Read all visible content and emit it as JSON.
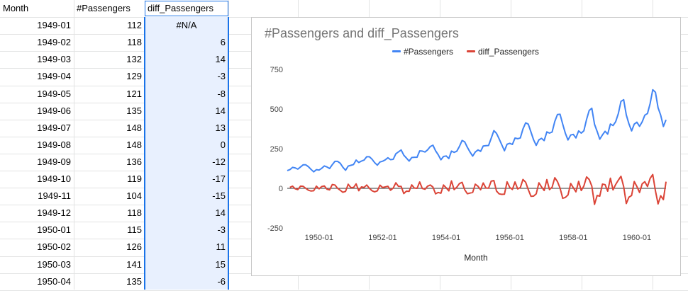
{
  "headers": {
    "month": "Month",
    "passengers": "#Passengers",
    "diff": "diff_Passengers"
  },
  "rows": [
    {
      "month": "1949-01",
      "passengers": "112",
      "diff": "#N/A"
    },
    {
      "month": "1949-02",
      "passengers": "118",
      "diff": "6"
    },
    {
      "month": "1949-03",
      "passengers": "132",
      "diff": "14"
    },
    {
      "month": "1949-04",
      "passengers": "129",
      "diff": "-3"
    },
    {
      "month": "1949-05",
      "passengers": "121",
      "diff": "-8"
    },
    {
      "month": "1949-06",
      "passengers": "135",
      "diff": "14"
    },
    {
      "month": "1949-07",
      "passengers": "148",
      "diff": "13"
    },
    {
      "month": "1949-08",
      "passengers": "148",
      "diff": "0"
    },
    {
      "month": "1949-09",
      "passengers": "136",
      "diff": "-12"
    },
    {
      "month": "1949-10",
      "passengers": "119",
      "diff": "-17"
    },
    {
      "month": "1949-11",
      "passengers": "104",
      "diff": "-15"
    },
    {
      "month": "1949-12",
      "passengers": "118",
      "diff": "14"
    },
    {
      "month": "1950-01",
      "passengers": "115",
      "diff": "-3"
    },
    {
      "month": "1950-02",
      "passengers": "126",
      "diff": "11"
    },
    {
      "month": "1950-03",
      "passengers": "141",
      "diff": "15"
    },
    {
      "month": "1950-04",
      "passengers": "135",
      "diff": "-6"
    }
  ],
  "chart_data": {
    "type": "line",
    "title": "#Passengers and diff_Passengers",
    "xlabel": "Month",
    "ylabel": "",
    "ylim": [
      -250,
      750
    ],
    "yticks": [
      750,
      500,
      250,
      0,
      -250
    ],
    "xtick_labels": [
      "1950-01",
      "1952-01",
      "1954-01",
      "1956-01",
      "1958-01",
      "1960-01"
    ],
    "legend_position": "top",
    "grid": false,
    "x_start": "1949-01",
    "series": [
      {
        "name": "#Passengers",
        "color": "#4285f4",
        "values": [
          112,
          118,
          132,
          129,
          121,
          135,
          148,
          148,
          136,
          119,
          104,
          118,
          115,
          126,
          141,
          135,
          125,
          149,
          170,
          170,
          158,
          133,
          114,
          140,
          145,
          150,
          178,
          163,
          172,
          178,
          199,
          199,
          184,
          162,
          146,
          166,
          171,
          180,
          193,
          181,
          183,
          218,
          230,
          242,
          209,
          191,
          172,
          194,
          196,
          196,
          236,
          235,
          229,
          243,
          264,
          272,
          237,
          211,
          180,
          201,
          204,
          188,
          235,
          227,
          234,
          264,
          302,
          293,
          259,
          229,
          203,
          229,
          242,
          233,
          267,
          269,
          270,
          315,
          364,
          347,
          312,
          274,
          237,
          278,
          284,
          277,
          317,
          313,
          318,
          374,
          413,
          405,
          355,
          306,
          271,
          306,
          315,
          301,
          356,
          348,
          355,
          422,
          465,
          467,
          404,
          347,
          305,
          336,
          340,
          318,
          362,
          348,
          363,
          435,
          491,
          505,
          404,
          359,
          310,
          337,
          360,
          342,
          406,
          396,
          420,
          472,
          548,
          559,
          463,
          407,
          362,
          405,
          417,
          391,
          419,
          461,
          472,
          535,
          622,
          606,
          508,
          461,
          390,
          432
        ]
      },
      {
        "name": "diff_Passengers",
        "color": "#db4437",
        "values": [
          null,
          6,
          14,
          -3,
          -8,
          14,
          13,
          0,
          -12,
          -17,
          -15,
          14,
          -3,
          11,
          15,
          -6,
          -10,
          24,
          21,
          0,
          -12,
          -25,
          -19,
          26,
          5,
          5,
          28,
          -15,
          9,
          6,
          21,
          0,
          -15,
          -22,
          -16,
          20,
          5,
          9,
          13,
          -12,
          2,
          35,
          12,
          12,
          -33,
          -18,
          -19,
          22,
          2,
          0,
          40,
          -1,
          -6,
          14,
          21,
          8,
          -35,
          -26,
          -31,
          21,
          3,
          -16,
          47,
          -8,
          7,
          30,
          38,
          -9,
          -34,
          -30,
          -26,
          26,
          13,
          -9,
          34,
          2,
          1,
          45,
          49,
          -17,
          -35,
          -38,
          -37,
          41,
          6,
          -7,
          40,
          -4,
          5,
          56,
          39,
          -8,
          -50,
          -49,
          -35,
          35,
          9,
          -14,
          55,
          -8,
          7,
          67,
          43,
          2,
          -63,
          -57,
          -42,
          31,
          4,
          -22,
          44,
          -14,
          15,
          72,
          56,
          14,
          -101,
          -45,
          -49,
          27,
          23,
          -18,
          64,
          -10,
          24,
          52,
          76,
          11,
          -96,
          -56,
          -45,
          43,
          12,
          -26,
          28,
          42,
          11,
          63,
          87,
          -16,
          -98,
          -47,
          -71,
          42
        ]
      }
    ]
  }
}
